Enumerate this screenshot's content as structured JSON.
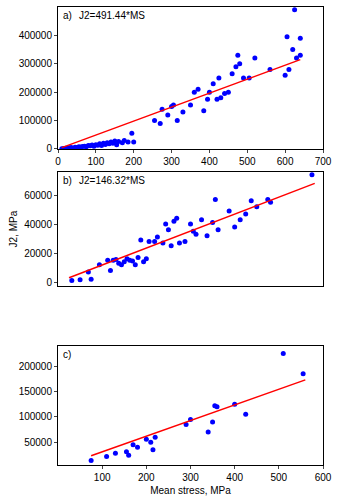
{
  "chart_data": [
    {
      "type": "scatter",
      "annotations": [
        "a)",
        "J2=491.44*MS"
      ],
      "xlim": [
        0,
        700
      ],
      "xticks": [
        0,
        100,
        200,
        300,
        400,
        500,
        600,
        700
      ],
      "ylim": [
        0,
        500000
      ],
      "yticks": [
        0,
        100000,
        200000,
        300000,
        400000
      ],
      "grid": false,
      "series": [
        {
          "type": "scatter",
          "color": "#0000ff",
          "marker": "circle",
          "x": [
            10,
            15,
            20,
            25,
            30,
            35,
            40,
            45,
            50,
            55,
            60,
            65,
            70,
            75,
            80,
            85,
            90,
            95,
            100,
            105,
            110,
            115,
            120,
            125,
            130,
            135,
            140,
            145,
            150,
            155,
            160,
            170,
            175,
            185,
            195,
            200,
            255,
            270,
            275,
            290,
            300,
            305,
            315,
            330,
            350,
            360,
            370,
            385,
            395,
            400,
            410,
            420,
            425,
            430,
            440,
            450,
            460,
            470,
            475,
            480,
            490,
            505,
            520,
            560,
            600,
            605,
            610,
            620,
            625,
            630,
            640,
            640
          ],
          "values": [
            1000,
            2000,
            3000,
            2500,
            4000,
            5000,
            3000,
            6000,
            5000,
            8000,
            7000,
            9000,
            10000,
            8000,
            12000,
            11000,
            14000,
            10000,
            15000,
            13000,
            18000,
            12000,
            20000,
            16000,
            22000,
            18000,
            25000,
            20000,
            28000,
            15000,
            26000,
            22000,
            30000,
            25000,
            55000,
            25000,
            100000,
            90000,
            140000,
            120000,
            150000,
            155000,
            100000,
            130000,
            155000,
            200000,
            210000,
            135000,
            175000,
            200000,
            230000,
            175000,
            250000,
            180000,
            195000,
            200000,
            265000,
            290000,
            330000,
            300000,
            250000,
            250000,
            320000,
            280000,
            260000,
            395000,
            280000,
            350000,
            490000,
            320000,
            390000,
            330000
          ]
        },
        {
          "type": "line",
          "color": "#ff0000",
          "line_style": "solid",
          "x": [
            10,
            640
          ],
          "values": [
            4914,
            314522
          ]
        }
      ]
    },
    {
      "type": "scatter",
      "annotations": [
        "b)",
        "J2=146.32*MS"
      ],
      "y_label": "J2, MPa",
      "xlim": [
        0,
        480
      ],
      "ylim": [
        -3000,
        76000
      ],
      "yticks": [
        0,
        20000,
        40000,
        60000
      ],
      "tick_labels": "y",
      "grid": false,
      "series": [
        {
          "type": "scatter",
          "color": "#0000ff",
          "marker": "circle",
          "x": [
            25,
            40,
            55,
            60,
            75,
            90,
            95,
            100,
            105,
            110,
            115,
            120,
            125,
            130,
            135,
            140,
            145,
            150,
            155,
            160,
            165,
            175,
            180,
            190,
            195,
            200,
            205,
            210,
            215,
            220,
            230,
            240,
            245,
            250,
            260,
            270,
            280,
            285,
            290,
            310,
            320,
            330,
            340,
            350,
            360,
            380,
            385,
            460
          ],
          "values": [
            1000,
            1500,
            7000,
            2000,
            12000,
            15000,
            8000,
            15000,
            15500,
            13000,
            12000,
            14000,
            16000,
            15000,
            14500,
            12000,
            17000,
            29000,
            14000,
            16000,
            28000,
            28000,
            31000,
            27000,
            40000,
            36000,
            25000,
            42000,
            44000,
            27000,
            28000,
            40000,
            35000,
            33000,
            43000,
            32000,
            41000,
            57000,
            36000,
            49000,
            38000,
            43000,
            47000,
            56000,
            52000,
            57000,
            55000,
            74000
          ]
        },
        {
          "type": "line",
          "color": "#ff0000",
          "line_style": "solid",
          "x": [
            20,
            465
          ],
          "values": [
            2926,
            68039
          ]
        }
      ]
    },
    {
      "type": "scatter",
      "annotations": [
        "c)"
      ],
      "x_label": "Mean stress, MPa",
      "xlim": [
        0,
        600
      ],
      "xticks": [
        100,
        200,
        300,
        400,
        500,
        600
      ],
      "ylim": [
        5000,
        240000
      ],
      "yticks": [
        50000,
        100000,
        150000,
        200000
      ],
      "grid": false,
      "series": [
        {
          "type": "scatter",
          "color": "#0000ff",
          "marker": "circle",
          "x": [
            75,
            110,
            130,
            155,
            160,
            170,
            180,
            200,
            210,
            215,
            220,
            290,
            300,
            340,
            350,
            355,
            360,
            400,
            425,
            510,
            555
          ],
          "values": [
            14000,
            22000,
            28000,
            31000,
            24000,
            45000,
            40000,
            56000,
            50000,
            35000,
            60000,
            85000,
            95000,
            70000,
            90000,
            122000,
            120000,
            125000,
            105000,
            225000,
            185000
          ]
        },
        {
          "type": "line",
          "color": "#ff0000",
          "line_style": "solid",
          "x": [
            75,
            560
          ],
          "values": [
            23159,
            172917
          ]
        }
      ]
    }
  ]
}
